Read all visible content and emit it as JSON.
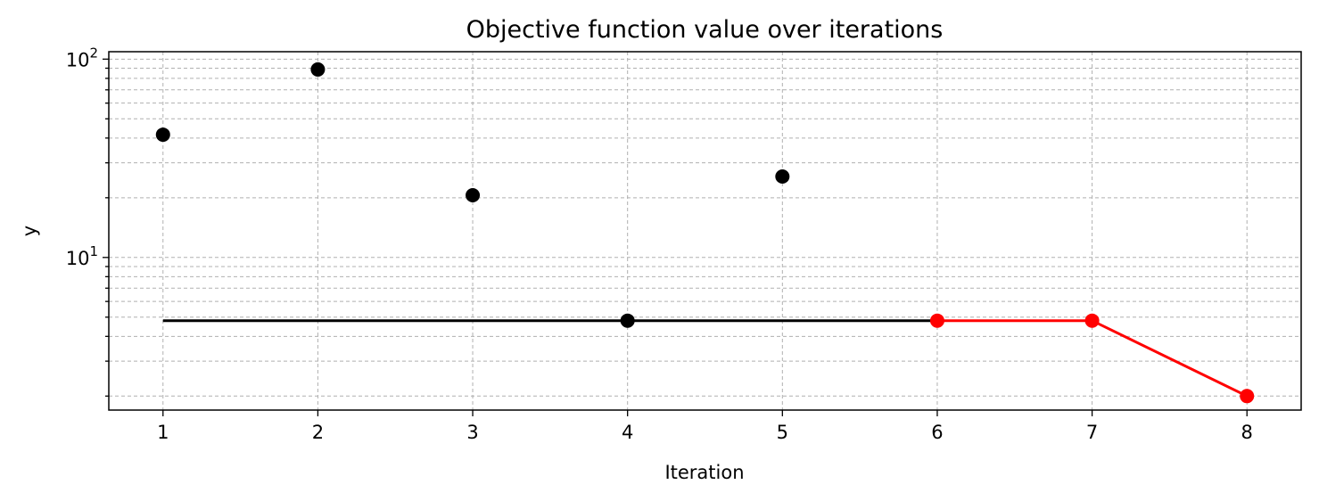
{
  "chart_data": {
    "type": "scatter",
    "title": "Objective function value over iterations",
    "xlabel": "Iteration",
    "ylabel": "y",
    "xlim": [
      0.65,
      8.35
    ],
    "ylim": [
      1.7,
      109
    ],
    "yscale": "log",
    "grid": "major and minor, dashed",
    "legend": "none",
    "x_ticks": [
      {
        "value": 1,
        "label": "1"
      },
      {
        "value": 2,
        "label": "2"
      },
      {
        "value": 3,
        "label": "3"
      },
      {
        "value": 4,
        "label": "4"
      },
      {
        "value": 5,
        "label": "5"
      },
      {
        "value": 6,
        "label": "6"
      },
      {
        "value": 7,
        "label": "7"
      },
      {
        "value": 8,
        "label": "8"
      }
    ],
    "y_ticks": [
      {
        "value": 10,
        "base": "10",
        "exp": "1"
      },
      {
        "value": 100,
        "base": "10",
        "exp": "2"
      }
    ],
    "series": [
      {
        "color": "#000000",
        "style": "markers",
        "x": [
          1,
          2,
          3,
          4,
          5
        ],
        "y": [
          41.6,
          88.7,
          20.6,
          4.8,
          25.6
        ]
      },
      {
        "color": "#000000",
        "style": "line",
        "x": [
          1,
          6
        ],
        "y": [
          4.8,
          4.8
        ]
      },
      {
        "color": "#ff0000",
        "style": "line+markers",
        "x": [
          6,
          7,
          8
        ],
        "y": [
          4.8,
          4.8,
          2.0
        ]
      }
    ]
  }
}
